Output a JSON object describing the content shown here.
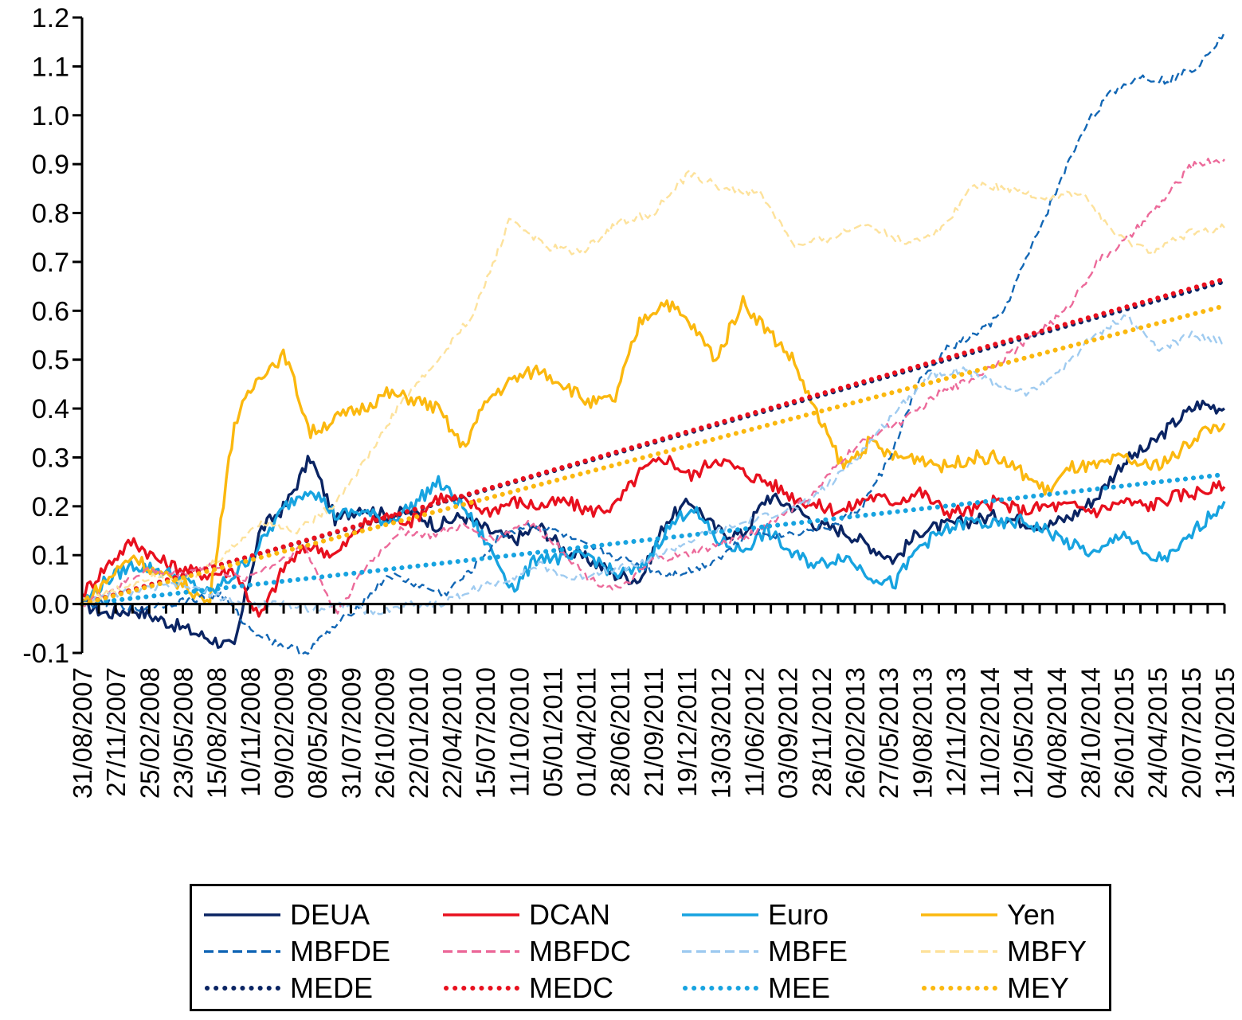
{
  "chart_data": {
    "type": "line",
    "title": "",
    "xlabel": "",
    "ylabel": "",
    "ylim": [
      -0.1,
      1.2
    ],
    "ytick_labels": [
      "-0.1",
      "0.0",
      "0.1",
      "0.2",
      "0.3",
      "0.4",
      "0.5",
      "0.6",
      "0.7",
      "0.8",
      "0.9",
      "1.0",
      "1.1",
      "1.2"
    ],
    "ytick_values": [
      -0.1,
      0.0,
      0.1,
      0.2,
      0.3,
      0.4,
      0.5,
      0.6,
      0.7,
      0.8,
      0.9,
      1.0,
      1.1,
      1.2
    ],
    "x_tick_labels": [
      "31/08/2007",
      "27/11/2007",
      "25/02/2008",
      "23/05/2008",
      "15/08/2008",
      "10/11/2008",
      "09/02/2009",
      "08/05/2009",
      "31/07/2009",
      "26/10/2009",
      "22/01/2010",
      "22/04/2010",
      "15/07/2010",
      "11/10/2010",
      "05/01/2011",
      "01/04/2011",
      "28/06/2011",
      "21/09/2011",
      "19/12/2011",
      "13/03/2012",
      "11/06/2012",
      "03/09/2012",
      "28/11/2012",
      "26/02/2013",
      "27/05/2013",
      "19/08/2013",
      "12/11/2013",
      "11/02/2014",
      "12/05/2014",
      "04/08/2014",
      "28/10/2014",
      "26/01/2015",
      "24/04/2015",
      "20/07/2015",
      "13/10/2015"
    ],
    "grid": false,
    "legend_position": "bottom",
    "series": [
      {
        "name": "DEUA",
        "style": "solid",
        "color": "#0a2463",
        "values": [
          0.0,
          -0.02,
          -0.01,
          -0.03,
          -0.05,
          -0.07,
          -0.09,
          0.15,
          0.2,
          0.3,
          0.17,
          0.2,
          0.18,
          0.19,
          0.16,
          0.18,
          0.15,
          0.13,
          0.16,
          0.11,
          0.09,
          0.06,
          0.05,
          0.17,
          0.21,
          0.15,
          0.14,
          0.22,
          0.2,
          0.16,
          0.15,
          0.12,
          0.09,
          0.15,
          0.16,
          0.17,
          0.18,
          0.17,
          0.16,
          0.18,
          0.22,
          0.29,
          0.32,
          0.37,
          0.41,
          0.4
        ]
      },
      {
        "name": "DCAN",
        "style": "solid",
        "color": "#e8101e",
        "values": [
          0.02,
          0.08,
          0.13,
          0.09,
          0.07,
          0.06,
          0.07,
          -0.03,
          0.08,
          0.12,
          0.1,
          0.16,
          0.18,
          0.17,
          0.22,
          0.21,
          0.19,
          0.21,
          0.2,
          0.21,
          0.19,
          0.2,
          0.27,
          0.3,
          0.26,
          0.3,
          0.27,
          0.25,
          0.22,
          0.2,
          0.19,
          0.22,
          0.21,
          0.23,
          0.19,
          0.19,
          0.21,
          0.19,
          0.2,
          0.2,
          0.19,
          0.21,
          0.2,
          0.22,
          0.23,
          0.24
        ]
      },
      {
        "name": "Euro",
        "style": "solid",
        "color": "#17a3e0",
        "values": [
          0.0,
          0.05,
          0.08,
          0.07,
          0.05,
          0.02,
          0.06,
          0.12,
          0.2,
          0.24,
          0.18,
          0.19,
          0.17,
          0.2,
          0.25,
          0.2,
          0.12,
          0.03,
          0.1,
          0.09,
          0.1,
          0.06,
          0.07,
          0.15,
          0.2,
          0.13,
          0.11,
          0.15,
          0.1,
          0.08,
          0.1,
          0.06,
          0.04,
          0.12,
          0.15,
          0.17,
          0.16,
          0.17,
          0.15,
          0.12,
          0.1,
          0.15,
          0.09,
          0.1,
          0.16,
          0.21
        ]
      },
      {
        "name": "Yen",
        "style": "solid",
        "color": "#fbb80f",
        "values": [
          0.0,
          0.05,
          0.1,
          0.06,
          0.04,
          0.0,
          0.37,
          0.47,
          0.51,
          0.35,
          0.38,
          0.4,
          0.43,
          0.42,
          0.4,
          0.32,
          0.42,
          0.46,
          0.48,
          0.45,
          0.41,
          0.42,
          0.58,
          0.62,
          0.57,
          0.5,
          0.62,
          0.56,
          0.5,
          0.38,
          0.28,
          0.33,
          0.3,
          0.3,
          0.28,
          0.3,
          0.3,
          0.27,
          0.23,
          0.28,
          0.28,
          0.3,
          0.28,
          0.3,
          0.35,
          0.37
        ]
      },
      {
        "name": "MBFDE",
        "style": "dashed",
        "color": "#1267b5",
        "values": [
          0.0,
          0.0,
          -0.01,
          0.0,
          0.01,
          0.02,
          -0.05,
          -0.08,
          -0.1,
          -0.05,
          0.0,
          0.06,
          0.04,
          0.02,
          0.07,
          0.14,
          0.16,
          0.15,
          0.12,
          0.1,
          0.08,
          0.06,
          0.07,
          0.1,
          0.15,
          0.14,
          0.15,
          0.16,
          0.2,
          0.3,
          0.45,
          0.52,
          0.55,
          0.59,
          0.72,
          0.85,
          0.98,
          1.05,
          1.08,
          1.07,
          1.1,
          1.17
        ]
      },
      {
        "name": "MBFDC",
        "style": "dashed",
        "color": "#ec6a9a",
        "values": [
          0.0,
          0.03,
          0.07,
          0.06,
          0.08,
          0.05,
          0.08,
          0.12,
          -0.02,
          0.08,
          0.15,
          0.14,
          0.16,
          0.13,
          0.17,
          0.12,
          0.05,
          0.03,
          0.09,
          0.1,
          0.12,
          0.14,
          0.18,
          0.22,
          0.3,
          0.35,
          0.38,
          0.43,
          0.46,
          0.5,
          0.55,
          0.6,
          0.7,
          0.75,
          0.82,
          0.9,
          0.91
        ]
      },
      {
        "name": "MBFE",
        "style": "dashed",
        "color": "#9fcbf0",
        "values": [
          0.0,
          0.02,
          0.03,
          0.04,
          0.02,
          0.0,
          0.0,
          -0.01,
          0.0,
          -0.02,
          0.0,
          0.0,
          0.03,
          0.05,
          0.08,
          0.05,
          0.07,
          0.08,
          0.11,
          0.14,
          0.16,
          0.18,
          0.2,
          0.25,
          0.32,
          0.4,
          0.47,
          0.48,
          0.45,
          0.43,
          0.48,
          0.55,
          0.59,
          0.52,
          0.55,
          0.54
        ]
      },
      {
        "name": "MBFY",
        "style": "dashed",
        "color": "#fde29c",
        "values": [
          0.0,
          0.03,
          0.06,
          0.05,
          0.1,
          0.17,
          0.15,
          0.2,
          0.3,
          0.42,
          0.5,
          0.6,
          0.79,
          0.73,
          0.72,
          0.78,
          0.8,
          0.88,
          0.85,
          0.84,
          0.73,
          0.75,
          0.78,
          0.74,
          0.76,
          0.86,
          0.85,
          0.83,
          0.84,
          0.75,
          0.72,
          0.76,
          0.77
        ]
      },
      {
        "name": "MEDE",
        "style": "dotted",
        "color": "#0a2463",
        "values": [
          0.0,
          0.66
        ]
      },
      {
        "name": "MEDC",
        "style": "dotted",
        "color": "#e8101e",
        "values": [
          0.0,
          0.665
        ]
      },
      {
        "name": "MEE",
        "style": "dotted",
        "color": "#17a3e0",
        "values": [
          0.0,
          0.265
        ]
      },
      {
        "name": "MEY",
        "style": "dotted",
        "color": "#fbb80f",
        "values": [
          0.0,
          0.61
        ]
      }
    ]
  },
  "legend": {
    "items": [
      {
        "label": "DEUA"
      },
      {
        "label": "DCAN"
      },
      {
        "label": "Euro"
      },
      {
        "label": "Yen"
      },
      {
        "label": "MBFDE"
      },
      {
        "label": "MBFDC"
      },
      {
        "label": "MBFE"
      },
      {
        "label": "MBFY"
      },
      {
        "label": "MEDE"
      },
      {
        "label": "MEDC"
      },
      {
        "label": "MEE"
      },
      {
        "label": "MEY"
      }
    ]
  }
}
